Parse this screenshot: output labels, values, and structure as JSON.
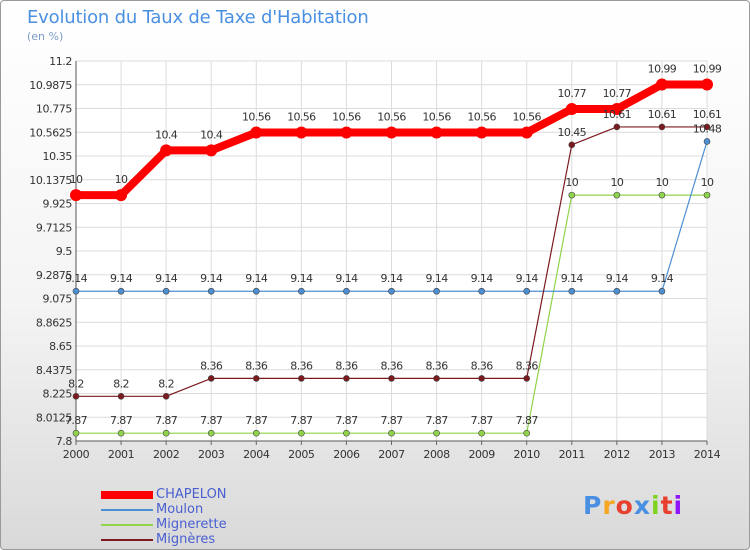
{
  "page": {
    "title": "Evolution du Taux de Taxe d'Habitation",
    "subtitle": "(en %)",
    "logo_text": "Proxiti"
  },
  "chart_data": {
    "type": "line",
    "title": "Evolution du Taux de Taxe d'Habitation",
    "ylabel": "(en %)",
    "xlabel": "",
    "x": [
      "2000",
      "2001",
      "2002",
      "2003",
      "2004",
      "2005",
      "2006",
      "2007",
      "2008",
      "2009",
      "2010",
      "2011",
      "2012",
      "2013",
      "2014"
    ],
    "ylim": [
      7.8,
      11.2
    ],
    "yticks": [
      "11.2",
      "10.9875",
      "10.775",
      "10.5625",
      "10.35",
      "10.1375",
      "9.925",
      "9.7125",
      "9.5",
      "9.2875",
      "9.075",
      "8.8625",
      "8.65",
      "8.4375",
      "8.225",
      "8.0125",
      "7.8"
    ],
    "grid": true,
    "legend_position": "bottom-left",
    "series": [
      {
        "name": "CHAPELON",
        "color": "#ff0000",
        "values": [
          10,
          10,
          10.4,
          10.4,
          10.56,
          10.56,
          10.56,
          10.56,
          10.56,
          10.56,
          10.56,
          10.77,
          10.77,
          10.99,
          10.99
        ],
        "labels": [
          "10",
          "10",
          "10.4",
          "10.4",
          "10.56",
          "10.56",
          "10.56",
          "10.56",
          "10.56",
          "10.56",
          "10.56",
          "10.77",
          "10.77",
          "10.99",
          "10.99"
        ]
      },
      {
        "name": "Moulon",
        "color": "#4d8fd3",
        "values": [
          9.14,
          9.14,
          9.14,
          9.14,
          9.14,
          9.14,
          9.14,
          9.14,
          9.14,
          9.14,
          9.14,
          9.14,
          9.14,
          9.14,
          10.48
        ],
        "labels": [
          "9.14",
          "9.14",
          "9.14",
          "9.14",
          "9.14",
          "9.14",
          "9.14",
          "9.14",
          "9.14",
          "9.14",
          "9.14",
          "9.14",
          "9.14",
          "9.14",
          "10.48"
        ]
      },
      {
        "name": "Mignerette",
        "color": "#8fd44a",
        "values": [
          7.87,
          7.87,
          7.87,
          7.87,
          7.87,
          7.87,
          7.87,
          7.87,
          7.87,
          7.87,
          7.87,
          10,
          10,
          10,
          10
        ],
        "labels": [
          "7.87",
          "7.87",
          "7.87",
          "7.87",
          "7.87",
          "7.87",
          "7.87",
          "7.87",
          "7.87",
          "7.87",
          "7.87",
          "10",
          "10",
          "10",
          "10"
        ]
      },
      {
        "name": "Mignères",
        "color": "#7b1a1f",
        "values": [
          8.2,
          8.2,
          8.2,
          8.36,
          8.36,
          8.36,
          8.36,
          8.36,
          8.36,
          8.36,
          8.36,
          10.45,
          10.61,
          10.61,
          10.61
        ],
        "labels": [
          "8.2",
          "8.2",
          "8.2",
          "8.36",
          "8.36",
          "8.36",
          "8.36",
          "8.36",
          "8.36",
          "8.36",
          "8.36",
          "10.45",
          "10.61",
          "10.61",
          "10.61"
        ]
      }
    ]
  },
  "logo_colors": [
    "#4a90e2",
    "#f5a623",
    "#e8402f",
    "#4a90e2",
    "#7ed321",
    "#e8402f",
    "#9013fe"
  ]
}
